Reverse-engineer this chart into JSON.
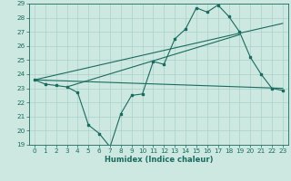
{
  "xlabel": "Humidex (Indice chaleur)",
  "bg_color": "#cce8e0",
  "grid_color": "#aad0c8",
  "line_color": "#1a6b60",
  "xlim": [
    -0.5,
    23.5
  ],
  "ylim": [
    19,
    29
  ],
  "yticks": [
    19,
    20,
    21,
    22,
    23,
    24,
    25,
    26,
    27,
    28,
    29
  ],
  "xticks": [
    0,
    1,
    2,
    3,
    4,
    5,
    6,
    7,
    8,
    9,
    10,
    11,
    12,
    13,
    14,
    15,
    16,
    17,
    18,
    19,
    20,
    21,
    22,
    23
  ],
  "main_x": [
    0,
    1,
    2,
    3,
    4,
    5,
    6,
    7,
    8,
    9,
    10,
    11,
    12,
    13,
    14,
    15,
    16,
    17,
    18,
    19,
    20,
    21,
    22,
    23
  ],
  "main_y": [
    23.6,
    23.3,
    23.2,
    23.1,
    22.7,
    20.4,
    19.8,
    18.85,
    21.2,
    22.5,
    22.6,
    24.9,
    24.7,
    26.5,
    27.2,
    28.7,
    28.4,
    28.9,
    28.1,
    27.0,
    25.2,
    24.0,
    23.0,
    22.85
  ],
  "line1_x": [
    0,
    23
  ],
  "line1_y": [
    23.6,
    23.0
  ],
  "line2_x": [
    0,
    23
  ],
  "line2_y": [
    23.6,
    27.6
  ],
  "line3_x": [
    3,
    19
  ],
  "line3_y": [
    23.1,
    26.8
  ]
}
